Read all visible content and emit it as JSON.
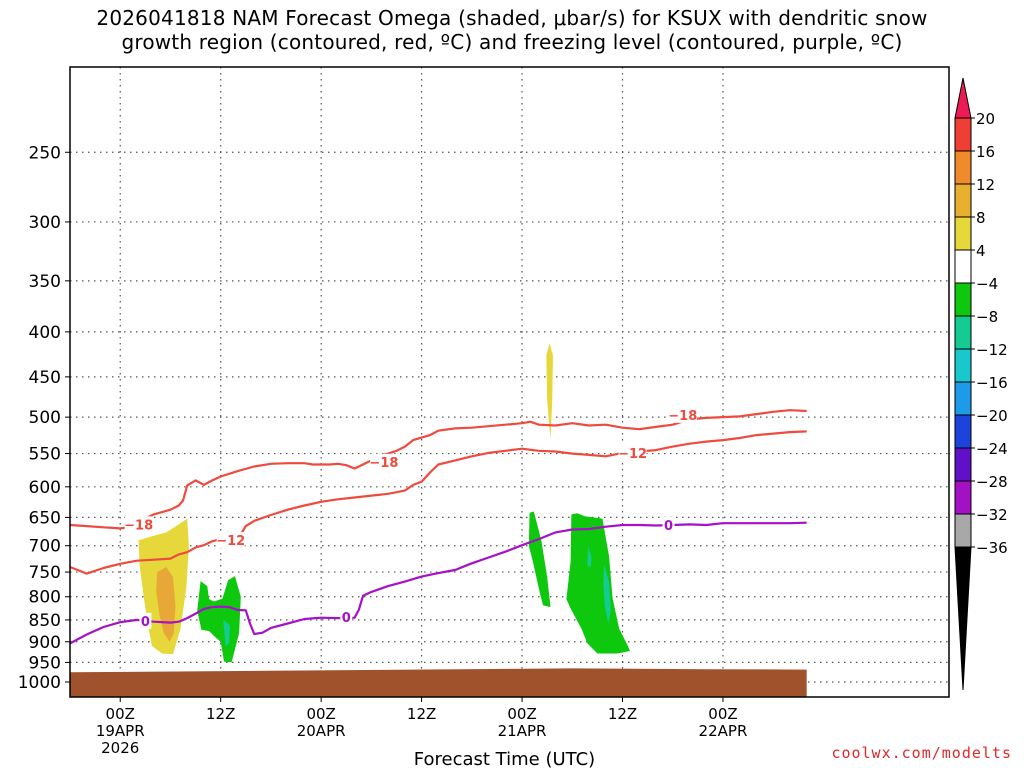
{
  "title_lines": [
    "2026041818 NAM Forecast Omega (shaded, μbar/s) for KSUX with dendritic snow",
    "growth region (contoured, red, ºC) and freezing level (contoured, purple, ºC)"
  ],
  "credit": "coolwx.com/modelts",
  "chart_data": {
    "type": "area",
    "xlabel": "Forecast Time (UTC)",
    "ylabel": "",
    "x_unit": "forecast hour",
    "xlim": [
      -6,
      99
    ],
    "ylim": [
      1040,
      200
    ],
    "x_ticks": [
      {
        "hour": 0,
        "lines": [
          "00Z",
          "19APR",
          "2026"
        ]
      },
      {
        "hour": 12,
        "lines": [
          "12Z"
        ]
      },
      {
        "hour": 24,
        "lines": [
          "00Z",
          "20APR"
        ]
      },
      {
        "hour": 36,
        "lines": [
          "12Z"
        ]
      },
      {
        "hour": 48,
        "lines": [
          "00Z",
          "21APR"
        ]
      },
      {
        "hour": 60,
        "lines": [
          "12Z"
        ]
      },
      {
        "hour": 72,
        "lines": [
          "00Z",
          "22APR"
        ]
      }
    ],
    "y_ticks": [
      250,
      300,
      350,
      400,
      450,
      500,
      550,
      600,
      650,
      700,
      750,
      800,
      850,
      900,
      950,
      1000
    ],
    "grid": true,
    "colorbar": {
      "labels": [
        "20",
        "16",
        "12",
        "8",
        "4",
        "−4",
        "−8",
        "−12",
        "−16",
        "−20",
        "−24",
        "−28",
        "−32",
        "−36"
      ],
      "colors": [
        "#ee1a55",
        "#ef3e33",
        "#f08a2a",
        "#e8b02e",
        "#e6d83a",
        "#ffffff",
        "#0dc80d",
        "#14cc92",
        "#18c8cc",
        "#1d9be8",
        "#1c44dc",
        "#6010c6",
        "#a410c4",
        "#a8a8a8",
        "#000000"
      ]
    },
    "contours": [
      {
        "label": "-18",
        "color": "#ef4a3e",
        "points": [
          [
            -6,
            663
          ],
          [
            -4,
            665
          ],
          [
            -2,
            667
          ],
          [
            0,
            669
          ],
          [
            1,
            667
          ],
          [
            2,
            660
          ],
          [
            3,
            652
          ],
          [
            4,
            645
          ],
          [
            5,
            641
          ],
          [
            6,
            637
          ],
          [
            7,
            630
          ],
          [
            7.5,
            622
          ],
          [
            8,
            598
          ],
          [
            9,
            590
          ],
          [
            10,
            597
          ],
          [
            11,
            590
          ],
          [
            12,
            584
          ],
          [
            14,
            576
          ],
          [
            16,
            569
          ],
          [
            18,
            565
          ],
          [
            20,
            564
          ],
          [
            22,
            564
          ],
          [
            23,
            566
          ],
          [
            25,
            566
          ],
          [
            26,
            565
          ],
          [
            27,
            567
          ],
          [
            28,
            572
          ],
          [
            29,
            566
          ],
          [
            30,
            560
          ],
          [
            31,
            553
          ],
          [
            32,
            550
          ],
          [
            33,
            546
          ],
          [
            34,
            540
          ],
          [
            35,
            531
          ],
          [
            37,
            524
          ],
          [
            38,
            518
          ],
          [
            40,
            515
          ],
          [
            42,
            514
          ],
          [
            44,
            512
          ],
          [
            46,
            510
          ],
          [
            48,
            508
          ],
          [
            49,
            506
          ],
          [
            50,
            510
          ],
          [
            52,
            511
          ],
          [
            54,
            508
          ],
          [
            56,
            511
          ],
          [
            58,
            510
          ],
          [
            60,
            514
          ],
          [
            62,
            516
          ],
          [
            64,
            513
          ],
          [
            66,
            510
          ],
          [
            68,
            503
          ],
          [
            70,
            501
          ],
          [
            72,
            500
          ],
          [
            74,
            499
          ],
          [
            76,
            496
          ],
          [
            78,
            493
          ],
          [
            80,
            491
          ],
          [
            82,
            492
          ]
        ]
      },
      {
        "label": "-12",
        "color": "#ef4a3e",
        "points": [
          [
            -6,
            740
          ],
          [
            -4,
            753
          ],
          [
            -2,
            742
          ],
          [
            0,
            734
          ],
          [
            2,
            728
          ],
          [
            4,
            726
          ],
          [
            6,
            724
          ],
          [
            7,
            716
          ],
          [
            8,
            712
          ],
          [
            9,
            703
          ],
          [
            10,
            699
          ],
          [
            11,
            692
          ],
          [
            12,
            688
          ],
          [
            13,
            689
          ],
          [
            14,
            684
          ],
          [
            14.5,
            677
          ],
          [
            15,
            665
          ],
          [
            16,
            656
          ],
          [
            18,
            646
          ],
          [
            20,
            637
          ],
          [
            22,
            630
          ],
          [
            24,
            624
          ],
          [
            26,
            620
          ],
          [
            28,
            617
          ],
          [
            30,
            614
          ],
          [
            32,
            611
          ],
          [
            34,
            606
          ],
          [
            35,
            597
          ],
          [
            36,
            592
          ],
          [
            37,
            578
          ],
          [
            38,
            566
          ],
          [
            40,
            560
          ],
          [
            42,
            554
          ],
          [
            44,
            549
          ],
          [
            46,
            546
          ],
          [
            48,
            543
          ],
          [
            50,
            546
          ],
          [
            52,
            547
          ],
          [
            54,
            550
          ],
          [
            56,
            552
          ],
          [
            58,
            554
          ],
          [
            60,
            549
          ],
          [
            62,
            547
          ],
          [
            64,
            545
          ],
          [
            66,
            540
          ],
          [
            68,
            536
          ],
          [
            70,
            533
          ],
          [
            72,
            531
          ],
          [
            74,
            528
          ],
          [
            76,
            524
          ],
          [
            78,
            522
          ],
          [
            80,
            520
          ],
          [
            82,
            519
          ]
        ]
      },
      {
        "label": "0",
        "color": "#a610c6",
        "points": [
          [
            -6,
            904
          ],
          [
            -4,
            883
          ],
          [
            -2,
            866
          ],
          [
            0,
            855
          ],
          [
            2,
            850
          ],
          [
            4,
            854
          ],
          [
            6,
            856
          ],
          [
            7,
            854
          ],
          [
            8,
            846
          ],
          [
            9,
            836
          ],
          [
            10,
            826
          ],
          [
            11,
            822
          ],
          [
            12,
            821
          ],
          [
            13,
            822
          ],
          [
            14,
            828
          ],
          [
            15,
            829
          ],
          [
            15.5,
            858
          ],
          [
            16,
            882
          ],
          [
            17,
            879
          ],
          [
            18,
            868
          ],
          [
            20,
            858
          ],
          [
            22,
            848
          ],
          [
            24,
            845
          ],
          [
            26,
            846
          ],
          [
            28,
            845
          ],
          [
            28.5,
            828
          ],
          [
            29,
            798
          ],
          [
            30,
            790
          ],
          [
            32,
            778
          ],
          [
            34,
            769
          ],
          [
            36,
            759
          ],
          [
            38,
            752
          ],
          [
            40,
            746
          ],
          [
            42,
            733
          ],
          [
            44,
            722
          ],
          [
            46,
            711
          ],
          [
            48,
            699
          ],
          [
            50,
            688
          ],
          [
            52,
            676
          ],
          [
            54,
            671
          ],
          [
            56,
            670
          ],
          [
            58,
            666
          ],
          [
            60,
            663
          ],
          [
            62,
            663
          ],
          [
            64,
            664
          ],
          [
            66,
            663
          ],
          [
            68,
            662
          ],
          [
            70,
            663
          ],
          [
            72,
            660
          ],
          [
            74,
            660
          ],
          [
            76,
            660
          ],
          [
            78,
            660
          ],
          [
            80,
            660
          ],
          [
            82,
            659
          ]
        ]
      }
    ],
    "shaded_regions": [
      {
        "value_range": "4 to 8",
        "color": "#e6d83a",
        "points": [
          [
            2.2,
            690
          ],
          [
            4,
            682
          ],
          [
            5.5,
            676
          ],
          [
            7,
            662
          ],
          [
            8,
            652
          ],
          [
            8.2,
            700
          ],
          [
            7.9,
            780
          ],
          [
            7.2,
            870
          ],
          [
            6.3,
            930
          ],
          [
            5,
            928
          ],
          [
            3.8,
            910
          ],
          [
            3.3,
            862
          ],
          [
            2.8,
            800
          ],
          [
            2.3,
            735
          ]
        ]
      },
      {
        "value_range": "8 to 12",
        "color": "#e8a838",
        "points": [
          [
            4.4,
            750
          ],
          [
            5.5,
            740
          ],
          [
            6.3,
            760
          ],
          [
            6.6,
            820
          ],
          [
            6.4,
            880
          ],
          [
            5.9,
            900
          ],
          [
            5.2,
            880
          ],
          [
            4.7,
            840
          ],
          [
            4.3,
            790
          ]
        ]
      },
      {
        "value_range": "4 to 8",
        "color": "#e6d83a",
        "points": [
          [
            51.3,
            412
          ],
          [
            51.7,
            426
          ],
          [
            51.6,
            480
          ],
          [
            51.4,
            530
          ],
          [
            51.0,
            480
          ],
          [
            50.9,
            425
          ]
        ]
      },
      {
        "value_range": "-4 to -8",
        "color": "#0dc80d",
        "points": [
          [
            9.6,
            768
          ],
          [
            10.4,
            778
          ],
          [
            10.6,
            805
          ],
          [
            11.2,
            810
          ],
          [
            12.2,
            804
          ],
          [
            12.9,
            766
          ],
          [
            13.7,
            758
          ],
          [
            14.4,
            800
          ],
          [
            14.2,
            880
          ],
          [
            13.3,
            950
          ],
          [
            12.4,
            948
          ],
          [
            12.0,
            900
          ],
          [
            11.4,
            890
          ],
          [
            10.6,
            875
          ],
          [
            9.7,
            872
          ],
          [
            9.2,
            830
          ]
        ]
      },
      {
        "value_range": "-8 to -12",
        "color": "#14cc92",
        "points": [
          [
            12.3,
            850
          ],
          [
            13.1,
            862
          ],
          [
            13.0,
            902
          ],
          [
            12.6,
            912
          ]
        ]
      },
      {
        "value_range": "-4 to -8",
        "color": "#0dc80d",
        "points": [
          [
            48.9,
            642
          ],
          [
            49.4,
            640
          ],
          [
            50.3,
            690
          ],
          [
            51.0,
            760
          ],
          [
            51.4,
            822
          ],
          [
            50.5,
            818
          ],
          [
            50.1,
            790
          ],
          [
            49.3,
            730
          ],
          [
            48.8,
            700
          ]
        ]
      },
      {
        "value_range": "-4 to -8",
        "color": "#0dc80d",
        "points": [
          [
            53.9,
            645
          ],
          [
            54.6,
            643
          ],
          [
            55.5,
            648
          ],
          [
            56.5,
            650
          ],
          [
            57.6,
            652
          ],
          [
            58.4,
            720
          ],
          [
            58.8,
            802
          ],
          [
            59.6,
            870
          ],
          [
            60.6,
            908
          ],
          [
            60.9,
            922
          ],
          [
            59.4,
            928
          ],
          [
            57.0,
            928
          ],
          [
            55.8,
            904
          ],
          [
            55.1,
            870
          ],
          [
            53.8,
            825
          ],
          [
            53.3,
            805
          ],
          [
            53.8,
            730
          ]
        ]
      },
      {
        "value_range": "-8 to -12",
        "color": "#14cc92",
        "points": [
          [
            55.9,
            702
          ],
          [
            56.3,
            722
          ],
          [
            56.2,
            740
          ],
          [
            55.8,
            738
          ]
        ]
      },
      {
        "value_range": "-8 to -12",
        "color": "#14cc92",
        "points": [
          [
            57.8,
            735
          ],
          [
            58.4,
            770
          ],
          [
            58.6,
            830
          ],
          [
            58.3,
            858
          ],
          [
            57.9,
            820
          ],
          [
            57.7,
            770
          ]
        ]
      }
    ],
    "ground": {
      "color": "#a0522d",
      "pressure": [
        [
          -6,
          975
        ],
        [
          54,
          965
        ],
        [
          70,
          967
        ],
        [
          82,
          968
        ]
      ]
    }
  }
}
